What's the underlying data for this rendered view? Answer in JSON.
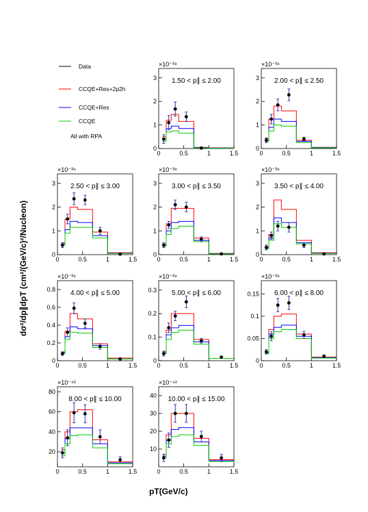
{
  "legend": {
    "items": [
      {
        "label": "Data",
        "color": "#000000"
      },
      {
        "label": "CCQE+Res+2p2h",
        "color": "#ff0000"
      },
      {
        "label": "CCQE+Res",
        "color": "#0000ff"
      },
      {
        "label": "CCQE",
        "color": "#00cc00"
      }
    ],
    "note": "All with RPA"
  },
  "y_axis_title": "dσ²/dp∥dpT (cm²/(GeV/c)²/Nucleon)",
  "x_axis_title": "pT(GeV/c)",
  "chart_data": [
    {
      "type": "histogram",
      "title_lo": "1.50",
      "title_hi": "2.00",
      "exponent": "×10⁻³⁹",
      "ylim": [
        0,
        3.4
      ],
      "yticks": [
        0,
        1,
        2,
        3
      ],
      "xlim": [
        0,
        1.5
      ],
      "xticks": [
        0,
        0.5,
        1,
        1.5
      ],
      "bin_edges": [
        0.075,
        0.15,
        0.25,
        0.4,
        0.7,
        1.0,
        1.5
      ],
      "series": [
        {
          "name": "CCQE+Res+2p2h",
          "color": "#ff0000",
          "values": [
            0.5,
            1.2,
            1.45,
            1.15,
            0.05,
            0.03
          ]
        },
        {
          "name": "CCQE+Res",
          "color": "#0000ff",
          "values": [
            0.4,
            0.85,
            0.95,
            0.85,
            0.04,
            0.02
          ]
        },
        {
          "name": "CCQE",
          "color": "#00cc00",
          "values": [
            0.3,
            0.7,
            0.75,
            0.65,
            0.03,
            0.01
          ]
        }
      ],
      "data": [
        {
          "x": 0.1,
          "y": 0.4,
          "err": 0.18
        },
        {
          "x": 0.2,
          "y": 1.1,
          "err": 0.3
        },
        {
          "x": 0.33,
          "y": 1.68,
          "err": 0.3
        },
        {
          "x": 0.55,
          "y": 1.35,
          "err": 0.2
        },
        {
          "x": 0.85,
          "y": 0.02,
          "err": 0.01
        }
      ]
    },
    {
      "type": "histogram",
      "title_lo": "2.00",
      "title_hi": "2.50",
      "exponent": "×10⁻³⁹",
      "ylim": [
        0,
        3.4
      ],
      "yticks": [
        0,
        1,
        2,
        3
      ],
      "xlim": [
        0,
        1.5
      ],
      "xticks": [
        0,
        0.5,
        1,
        1.5
      ],
      "bin_edges": [
        0.075,
        0.15,
        0.25,
        0.4,
        0.7,
        1.0,
        1.5
      ],
      "series": [
        {
          "name": "CCQE+Res+2p2h",
          "color": "#ff0000",
          "values": [
            0.42,
            1.25,
            1.8,
            1.6,
            0.35,
            0.05
          ]
        },
        {
          "name": "CCQE+Res",
          "color": "#0000ff",
          "values": [
            0.35,
            0.9,
            1.25,
            1.15,
            0.3,
            0.04
          ]
        },
        {
          "name": "CCQE",
          "color": "#00cc00",
          "values": [
            0.3,
            0.75,
            1.0,
            0.95,
            0.25,
            0.03
          ]
        }
      ],
      "data": [
        {
          "x": 0.1,
          "y": 0.35,
          "err": 0.1
        },
        {
          "x": 0.2,
          "y": 1.25,
          "err": 0.2
        },
        {
          "x": 0.33,
          "y": 1.85,
          "err": 0.25
        },
        {
          "x": 0.55,
          "y": 2.28,
          "err": 0.25
        },
        {
          "x": 0.85,
          "y": 0.4,
          "err": 0.08
        }
      ]
    },
    {
      "type": "histogram",
      "title_lo": "2.50",
      "title_hi": "3.00",
      "exponent": "×10⁻³⁹",
      "ylim": [
        0,
        3.4
      ],
      "yticks": [
        0,
        1,
        2,
        3
      ],
      "xlim": [
        0,
        1.5
      ],
      "xticks": [
        0,
        0.5,
        1,
        1.5
      ],
      "bin_edges": [
        0.075,
        0.15,
        0.25,
        0.4,
        0.7,
        1.0,
        1.5
      ],
      "series": [
        {
          "name": "CCQE+Res+2p2h",
          "color": "#ff0000",
          "values": [
            0.5,
            1.5,
            2.0,
            1.9,
            0.95,
            0.08
          ]
        },
        {
          "name": "CCQE+Res",
          "color": "#0000ff",
          "values": [
            0.45,
            1.05,
            1.4,
            1.35,
            0.8,
            0.06
          ]
        },
        {
          "name": "CCQE",
          "color": "#00cc00",
          "values": [
            0.4,
            0.9,
            1.15,
            1.15,
            0.7,
            0.05
          ]
        }
      ],
      "data": [
        {
          "x": 0.1,
          "y": 0.4,
          "err": 0.1
        },
        {
          "x": 0.2,
          "y": 1.5,
          "err": 0.2
        },
        {
          "x": 0.33,
          "y": 2.35,
          "err": 0.25
        },
        {
          "x": 0.55,
          "y": 2.3,
          "err": 0.2
        },
        {
          "x": 0.85,
          "y": 1.0,
          "err": 0.15
        },
        {
          "x": 1.25,
          "y": 0.02,
          "err": 0.01
        }
      ]
    },
    {
      "type": "histogram",
      "title_lo": "3.00",
      "title_hi": "3.50",
      "exponent": "×10⁻³⁹",
      "ylim": [
        0,
        3.4
      ],
      "yticks": [
        0,
        1,
        2,
        3
      ],
      "xlim": [
        0,
        1.5
      ],
      "xticks": [
        0,
        0.5,
        1,
        1.5
      ],
      "bin_edges": [
        0.075,
        0.15,
        0.25,
        0.4,
        0.7,
        1.0,
        1.5
      ],
      "series": [
        {
          "name": "CCQE+Res+2p2h",
          "color": "#ff0000",
          "values": [
            0.45,
            1.3,
            1.95,
            1.95,
            0.7,
            0.05
          ]
        },
        {
          "name": "CCQE+Res",
          "color": "#0000ff",
          "values": [
            0.4,
            1.0,
            1.35,
            1.4,
            0.6,
            0.04
          ]
        },
        {
          "name": "CCQE",
          "color": "#00cc00",
          "values": [
            0.35,
            0.85,
            1.1,
            1.2,
            0.55,
            0.03
          ]
        }
      ],
      "data": [
        {
          "x": 0.1,
          "y": 0.4,
          "err": 0.1
        },
        {
          "x": 0.2,
          "y": 1.25,
          "err": 0.15
        },
        {
          "x": 0.33,
          "y": 2.1,
          "err": 0.2
        },
        {
          "x": 0.55,
          "y": 2.0,
          "err": 0.2
        },
        {
          "x": 0.85,
          "y": 0.65,
          "err": 0.1
        },
        {
          "x": 1.25,
          "y": 0.03,
          "err": 0.01
        }
      ]
    },
    {
      "type": "histogram",
      "title_lo": "3.50",
      "title_hi": "4.00",
      "exponent": "×10⁻³⁹",
      "ylim": [
        0,
        3.4
      ],
      "yticks": [
        0,
        1,
        2,
        3
      ],
      "xlim": [
        0,
        1.5
      ],
      "xticks": [
        0,
        0.5,
        1,
        1.5
      ],
      "bin_edges": [
        0.075,
        0.15,
        0.25,
        0.4,
        0.7,
        1.0,
        1.5
      ],
      "series": [
        {
          "name": "CCQE+Res+2p2h",
          "color": "#ff0000",
          "values": [
            0.35,
            0.85,
            2.3,
            1.9,
            0.6,
            0.08
          ]
        },
        {
          "name": "CCQE+Res",
          "color": "#0000ff",
          "values": [
            0.3,
            0.7,
            1.55,
            1.35,
            0.5,
            0.06
          ]
        },
        {
          "name": "CCQE",
          "color": "#00cc00",
          "values": [
            0.25,
            0.6,
            1.3,
            1.15,
            0.45,
            0.05
          ]
        }
      ],
      "data": [
        {
          "x": 0.1,
          "y": 0.3,
          "err": 0.1
        },
        {
          "x": 0.2,
          "y": 0.8,
          "err": 0.15
        },
        {
          "x": 0.33,
          "y": 1.2,
          "err": 0.2
        },
        {
          "x": 0.55,
          "y": 1.15,
          "err": 0.2
        },
        {
          "x": 0.85,
          "y": 0.4,
          "err": 0.1
        },
        {
          "x": 1.25,
          "y": 0.03,
          "err": 0.01
        }
      ]
    },
    {
      "type": "histogram",
      "title_lo": "4.00",
      "title_hi": "5.00",
      "exponent": "×10⁻³⁹",
      "ylim": [
        0,
        0.9
      ],
      "yticks": [
        0,
        0.2,
        0.4,
        0.6,
        0.8
      ],
      "xlim": [
        0,
        1.5
      ],
      "xticks": [
        0,
        0.5,
        1,
        1.5
      ],
      "bin_edges": [
        0.075,
        0.15,
        0.25,
        0.4,
        0.7,
        1.0,
        1.5
      ],
      "series": [
        {
          "name": "CCQE+Res+2p2h",
          "color": "#ff0000",
          "values": [
            0.1,
            0.33,
            0.53,
            0.47,
            0.19,
            0.03
          ]
        },
        {
          "name": "CCQE+Res",
          "color": "#0000ff",
          "values": [
            0.09,
            0.27,
            0.38,
            0.36,
            0.17,
            0.02
          ]
        },
        {
          "name": "CCQE",
          "color": "#00cc00",
          "values": [
            0.08,
            0.24,
            0.32,
            0.31,
            0.15,
            0.02
          ]
        }
      ],
      "data": [
        {
          "x": 0.1,
          "y": 0.08,
          "err": 0.02
        },
        {
          "x": 0.2,
          "y": 0.32,
          "err": 0.05
        },
        {
          "x": 0.33,
          "y": 0.59,
          "err": 0.06
        },
        {
          "x": 0.55,
          "y": 0.42,
          "err": 0.05
        },
        {
          "x": 0.85,
          "y": 0.16,
          "err": 0.03
        },
        {
          "x": 1.25,
          "y": 0.02,
          "err": 0.01
        }
      ]
    },
    {
      "type": "histogram",
      "title_lo": "5.00",
      "title_hi": "6.00",
      "exponent": "×10⁻³⁹",
      "ylim": [
        0,
        0.34
      ],
      "yticks": [
        0,
        0.1,
        0.2,
        0.3
      ],
      "xlim": [
        0,
        1.5
      ],
      "xticks": [
        0,
        0.5,
        1,
        1.5
      ],
      "bin_edges": [
        0.075,
        0.15,
        0.25,
        0.4,
        0.7,
        1.0,
        1.5
      ],
      "series": [
        {
          "name": "CCQE+Res+2p2h",
          "color": "#ff0000",
          "values": [
            0.04,
            0.13,
            0.2,
            0.2,
            0.09,
            0.01
          ]
        },
        {
          "name": "CCQE+Res",
          "color": "#0000ff",
          "values": [
            0.035,
            0.11,
            0.14,
            0.15,
            0.08,
            0.01
          ]
        },
        {
          "name": "CCQE",
          "color": "#00cc00",
          "values": [
            0.03,
            0.09,
            0.12,
            0.13,
            0.07,
            0.01
          ]
        }
      ],
      "data": [
        {
          "x": 0.1,
          "y": 0.03,
          "err": 0.01
        },
        {
          "x": 0.2,
          "y": 0.14,
          "err": 0.02
        },
        {
          "x": 0.33,
          "y": 0.19,
          "err": 0.02
        },
        {
          "x": 0.55,
          "y": 0.25,
          "err": 0.025
        },
        {
          "x": 0.85,
          "y": 0.085,
          "err": 0.01
        },
        {
          "x": 1.25,
          "y": 0.015,
          "err": 0.005
        }
      ]
    },
    {
      "type": "histogram",
      "title_lo": "6.00",
      "title_hi": "8.00",
      "exponent": "×10⁻³⁹",
      "ylim": [
        0,
        0.18
      ],
      "yticks": [
        0,
        0.05,
        0.1,
        0.15
      ],
      "xlim": [
        0,
        1.5
      ],
      "xticks": [
        0,
        0.5,
        1,
        1.5
      ],
      "bin_edges": [
        0.075,
        0.15,
        0.25,
        0.4,
        0.7,
        1.0,
        1.5
      ],
      "series": [
        {
          "name": "CCQE+Res+2p2h",
          "color": "#ff0000",
          "values": [
            0.02,
            0.07,
            0.1,
            0.105,
            0.06,
            0.008
          ]
        },
        {
          "name": "CCQE+Res",
          "color": "#0000ff",
          "values": [
            0.018,
            0.06,
            0.075,
            0.08,
            0.055,
            0.007
          ]
        },
        {
          "name": "CCQE",
          "color": "#00cc00",
          "values": [
            0.016,
            0.05,
            0.065,
            0.07,
            0.05,
            0.006
          ]
        }
      ],
      "data": [
        {
          "x": 0.1,
          "y": 0.02,
          "err": 0.005
        },
        {
          "x": 0.2,
          "y": 0.055,
          "err": 0.01
        },
        {
          "x": 0.33,
          "y": 0.125,
          "err": 0.015
        },
        {
          "x": 0.55,
          "y": 0.13,
          "err": 0.015
        },
        {
          "x": 0.85,
          "y": 0.058,
          "err": 0.008
        },
        {
          "x": 1.25,
          "y": 0.01,
          "err": 0.003
        }
      ]
    },
    {
      "type": "histogram",
      "title_lo": "8.00",
      "title_hi": "10.00",
      "exponent": "×10⁻⁴²",
      "ylim": [
        5,
        85
      ],
      "yticks": [
        20,
        40,
        60,
        80
      ],
      "xlim": [
        0,
        1.5
      ],
      "xticks": [
        0,
        0.5,
        1,
        1.5
      ],
      "bin_edges": [
        0.075,
        0.15,
        0.25,
        0.4,
        0.7,
        1.0,
        1.5
      ],
      "series": [
        {
          "name": "CCQE+Res+2p2h",
          "color": "#ff0000",
          "values": [
            22,
            40,
            60,
            62,
            32,
            10
          ]
        },
        {
          "name": "CCQE+Res",
          "color": "#0000ff",
          "values": [
            19,
            33,
            44,
            44,
            28,
            9
          ]
        },
        {
          "name": "CCQE",
          "color": "#00cc00",
          "values": [
            16,
            28,
            36,
            37,
            24,
            8
          ]
        }
      ],
      "data": [
        {
          "x": 0.1,
          "y": 19,
          "err": 5
        },
        {
          "x": 0.2,
          "y": 34,
          "err": 8
        },
        {
          "x": 0.33,
          "y": 59,
          "err": 10
        },
        {
          "x": 0.55,
          "y": 58,
          "err": 9
        },
        {
          "x": 0.85,
          "y": 35,
          "err": 7
        },
        {
          "x": 1.25,
          "y": 12,
          "err": 3
        }
      ]
    },
    {
      "type": "histogram",
      "title_lo": "10.00",
      "title_hi": "15.00",
      "exponent": "×10⁻⁴²",
      "ylim": [
        0,
        45
      ],
      "yticks": [
        10,
        20,
        30,
        40
      ],
      "xlim": [
        0,
        1.5
      ],
      "xticks": [
        0,
        0.5,
        1,
        1.5
      ],
      "bin_edges": [
        0.075,
        0.15,
        0.25,
        0.4,
        0.7,
        1.0,
        1.5
      ],
      "series": [
        {
          "name": "CCQE+Res+2p2h",
          "color": "#ff0000",
          "values": [
            7,
            18,
            30,
            30,
            16,
            4
          ]
        },
        {
          "name": "CCQE+Res",
          "color": "#0000ff",
          "values": [
            6,
            15,
            21,
            22,
            14,
            3.5
          ]
        },
        {
          "name": "CCQE",
          "color": "#00cc00",
          "values": [
            5,
            13,
            17,
            18,
            12,
            3
          ]
        }
      ],
      "data": [
        {
          "x": 0.1,
          "y": 5,
          "err": 2
        },
        {
          "x": 0.2,
          "y": 15,
          "err": 4
        },
        {
          "x": 0.33,
          "y": 30,
          "err": 5
        },
        {
          "x": 0.55,
          "y": 30,
          "err": 5
        },
        {
          "x": 0.85,
          "y": 17,
          "err": 3
        },
        {
          "x": 1.25,
          "y": 5,
          "err": 2
        }
      ]
    }
  ]
}
